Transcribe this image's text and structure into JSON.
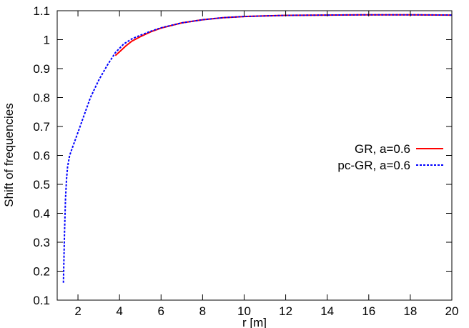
{
  "chart_data": {
    "type": "line",
    "xlabel": "r [m]",
    "ylabel": "Shift of frequencies",
    "xlim": [
      1,
      20
    ],
    "ylim": [
      0.1,
      1.1
    ],
    "xticks": [
      2,
      4,
      6,
      8,
      10,
      12,
      14,
      16,
      18,
      20
    ],
    "yticks": [
      0.1,
      0.2,
      0.3,
      0.4,
      0.5,
      0.6,
      0.7,
      0.8,
      0.9,
      1,
      1.1
    ],
    "grid": false,
    "legend_position": "right",
    "series": [
      {
        "name": "GR, a=0.6",
        "color": "#ff0000",
        "dash": "solid",
        "x": [
          3.8,
          4.0,
          4.3,
          4.6,
          5.0,
          5.5,
          6.0,
          7.0,
          8.0,
          9.0,
          10.0,
          11.0,
          12.0,
          14.0,
          16.0,
          18.0,
          20.0
        ],
        "y": [
          0.945,
          0.958,
          0.978,
          0.995,
          1.01,
          1.027,
          1.04,
          1.058,
          1.069,
          1.076,
          1.08,
          1.082,
          1.084,
          1.085,
          1.086,
          1.086,
          1.085
        ]
      },
      {
        "name": "pc-GR, a=0.6",
        "color": "#0000ff",
        "dash": "dotted",
        "x": [
          1.3,
          1.35,
          1.4,
          1.45,
          1.5,
          1.6,
          1.7,
          1.8,
          2.0,
          2.3,
          2.6,
          3.0,
          3.4,
          3.8,
          4.2,
          4.6,
          5.0,
          5.5,
          6.0,
          7.0,
          8.0,
          9.0,
          10.0,
          11.0,
          12.0,
          14.0,
          16.0,
          18.0,
          20.0
        ],
        "y": [
          0.16,
          0.33,
          0.45,
          0.52,
          0.56,
          0.6,
          0.62,
          0.64,
          0.68,
          0.74,
          0.8,
          0.86,
          0.91,
          0.955,
          0.985,
          1.003,
          1.015,
          1.029,
          1.041,
          1.058,
          1.069,
          1.076,
          1.08,
          1.082,
          1.084,
          1.085,
          1.086,
          1.086,
          1.085
        ]
      }
    ]
  }
}
